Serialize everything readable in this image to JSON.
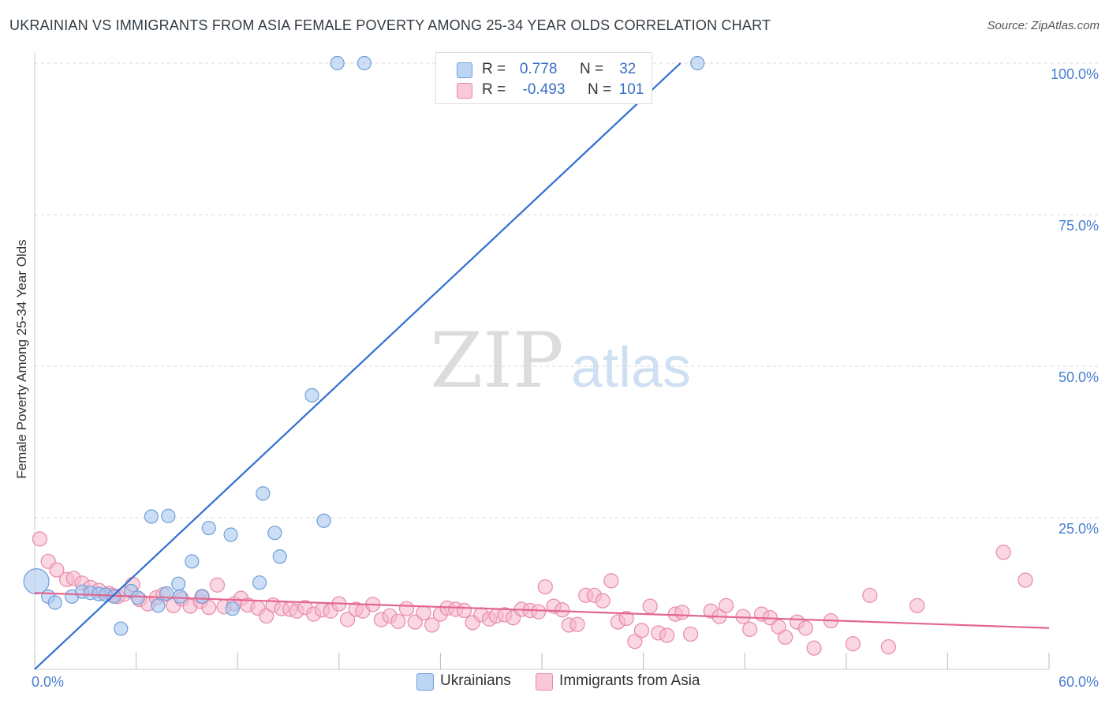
{
  "title": "UKRAINIAN VS IMMIGRANTS FROM ASIA FEMALE POVERTY AMONG 25-34 YEAR OLDS CORRELATION CHART",
  "source": "Source: ZipAtlas.com",
  "watermark": {
    "zip": "ZIP",
    "atlas": "atlas"
  },
  "legend_top": {
    "rows": [
      {
        "r_label": "R =",
        "r_value": "0.778",
        "n_label": "N =",
        "n_value": "32"
      },
      {
        "r_label": "R =",
        "r_value": "-0.493",
        "n_label": "N =",
        "n_value": "101"
      }
    ]
  },
  "legend_bottom": [
    "Ukrainians",
    "Immigrants from Asia"
  ],
  "colors": {
    "blue_fill": "#a8c8f0",
    "blue_stroke": "#6f9fd8",
    "blue_line": "#2f6fd0",
    "pink_fill": "#f6b7ca",
    "pink_stroke": "#e88aa8",
    "pink_line": "#e3668f",
    "tick_text": "#4a7fd0",
    "grid": "#d8d8d8"
  },
  "chart_data": {
    "type": "scatter",
    "title": "UKRAINIAN VS IMMIGRANTS FROM ASIA FEMALE POVERTY AMONG 25-34 YEAR OLDS CORRELATION CHART",
    "xlabel": "",
    "ylabel": "Female Poverty Among 25-34 Year Olds",
    "xlim": [
      0,
      60
    ],
    "ylim": [
      0,
      100
    ],
    "x_tick_labels": [
      "0.0%",
      "60.0%"
    ],
    "y_ticks": [
      {
        "value": 25,
        "label": "25.0%"
      },
      {
        "value": 50,
        "label": "50.0%"
      },
      {
        "value": 75,
        "label": "75.0%"
      },
      {
        "value": 100,
        "label": "100.0%"
      }
    ],
    "grid": true,
    "series": [
      {
        "name": "Ukrainians",
        "R": 0.778,
        "N": 32,
        "trend": {
          "x0": 0,
          "y0": 0,
          "x1": 38.2,
          "y1": 100
        },
        "points": [
          {
            "x": 0.1,
            "y": 14.5,
            "big": true
          },
          {
            "x": 0.8,
            "y": 12.0
          },
          {
            "x": 1.2,
            "y": 11.0
          },
          {
            "x": 2.2,
            "y": 12.0
          },
          {
            "x": 2.8,
            "y": 12.8
          },
          {
            "x": 3.3,
            "y": 12.6
          },
          {
            "x": 3.8,
            "y": 12.4
          },
          {
            "x": 4.2,
            "y": 12.3
          },
          {
            "x": 4.7,
            "y": 12.0
          },
          {
            "x": 5.1,
            "y": 6.7
          },
          {
            "x": 5.7,
            "y": 12.9
          },
          {
            "x": 6.1,
            "y": 11.8
          },
          {
            "x": 6.9,
            "y": 25.2
          },
          {
            "x": 7.3,
            "y": 10.5
          },
          {
            "x": 7.9,
            "y": 25.3
          },
          {
            "x": 8.5,
            "y": 14.1
          },
          {
            "x": 8.6,
            "y": 12.0
          },
          {
            "x": 9.3,
            "y": 17.8
          },
          {
            "x": 9.9,
            "y": 12.0
          },
          {
            "x": 10.3,
            "y": 23.3
          },
          {
            "x": 11.6,
            "y": 22.2
          },
          {
            "x": 11.7,
            "y": 10.0
          },
          {
            "x": 13.3,
            "y": 14.3
          },
          {
            "x": 13.5,
            "y": 29.0
          },
          {
            "x": 14.2,
            "y": 22.5
          },
          {
            "x": 14.5,
            "y": 18.6
          },
          {
            "x": 16.4,
            "y": 45.2
          },
          {
            "x": 17.1,
            "y": 24.5
          },
          {
            "x": 17.9,
            "y": 100.0
          },
          {
            "x": 19.5,
            "y": 100.0
          },
          {
            "x": 39.2,
            "y": 100.0
          },
          {
            "x": 7.8,
            "y": 12.5
          }
        ]
      },
      {
        "name": "Immigrants from Asia",
        "R": -0.493,
        "N": 101,
        "trend": {
          "x0": 0,
          "y0": 12.6,
          "x1": 60,
          "y1": 6.8
        },
        "points": [
          {
            "x": 0.3,
            "y": 21.5
          },
          {
            "x": 0.8,
            "y": 17.8
          },
          {
            "x": 1.3,
            "y": 16.4
          },
          {
            "x": 1.9,
            "y": 14.8
          },
          {
            "x": 2.3,
            "y": 15.0
          },
          {
            "x": 2.8,
            "y": 14.2
          },
          {
            "x": 3.3,
            "y": 13.5
          },
          {
            "x": 3.8,
            "y": 13.0
          },
          {
            "x": 4.4,
            "y": 12.5
          },
          {
            "x": 4.9,
            "y": 12.0
          },
          {
            "x": 5.3,
            "y": 12.4
          },
          {
            "x": 5.8,
            "y": 14.0
          },
          {
            "x": 6.2,
            "y": 11.5
          },
          {
            "x": 6.7,
            "y": 10.8
          },
          {
            "x": 7.2,
            "y": 11.8
          },
          {
            "x": 7.6,
            "y": 12.3
          },
          {
            "x": 8.2,
            "y": 10.5
          },
          {
            "x": 8.7,
            "y": 11.6
          },
          {
            "x": 9.2,
            "y": 10.4
          },
          {
            "x": 9.8,
            "y": 11.2
          },
          {
            "x": 10.3,
            "y": 10.2
          },
          {
            "x": 10.8,
            "y": 13.9
          },
          {
            "x": 11.2,
            "y": 10.3
          },
          {
            "x": 11.8,
            "y": 10.8
          },
          {
            "x": 12.2,
            "y": 11.7
          },
          {
            "x": 12.6,
            "y": 10.6
          },
          {
            "x": 13.2,
            "y": 10.1
          },
          {
            "x": 13.7,
            "y": 8.8
          },
          {
            "x": 14.1,
            "y": 10.6
          },
          {
            "x": 14.6,
            "y": 10.0
          },
          {
            "x": 15.1,
            "y": 9.9
          },
          {
            "x": 15.5,
            "y": 9.6
          },
          {
            "x": 16.0,
            "y": 10.2
          },
          {
            "x": 16.5,
            "y": 9.1
          },
          {
            "x": 17.0,
            "y": 9.8
          },
          {
            "x": 17.5,
            "y": 9.6
          },
          {
            "x": 18.0,
            "y": 10.8
          },
          {
            "x": 18.5,
            "y": 8.2
          },
          {
            "x": 19.0,
            "y": 9.9
          },
          {
            "x": 19.4,
            "y": 9.6
          },
          {
            "x": 20.0,
            "y": 10.7
          },
          {
            "x": 20.5,
            "y": 8.2
          },
          {
            "x": 21.0,
            "y": 8.8
          },
          {
            "x": 21.5,
            "y": 7.9
          },
          {
            "x": 22.0,
            "y": 10.0
          },
          {
            "x": 22.5,
            "y": 7.8
          },
          {
            "x": 23.0,
            "y": 9.3
          },
          {
            "x": 23.5,
            "y": 7.3
          },
          {
            "x": 24.0,
            "y": 9.1
          },
          {
            "x": 24.4,
            "y": 10.1
          },
          {
            "x": 24.9,
            "y": 9.9
          },
          {
            "x": 25.4,
            "y": 9.7
          },
          {
            "x": 25.9,
            "y": 7.7
          },
          {
            "x": 26.4,
            "y": 9.0
          },
          {
            "x": 26.9,
            "y": 8.3
          },
          {
            "x": 27.3,
            "y": 8.8
          },
          {
            "x": 27.8,
            "y": 9.0
          },
          {
            "x": 28.3,
            "y": 8.5
          },
          {
            "x": 28.8,
            "y": 9.9
          },
          {
            "x": 29.3,
            "y": 9.7
          },
          {
            "x": 29.8,
            "y": 9.5
          },
          {
            "x": 30.2,
            "y": 13.6
          },
          {
            "x": 30.7,
            "y": 10.4
          },
          {
            "x": 31.2,
            "y": 9.8
          },
          {
            "x": 31.6,
            "y": 7.3
          },
          {
            "x": 32.1,
            "y": 7.4
          },
          {
            "x": 32.6,
            "y": 12.2
          },
          {
            "x": 33.1,
            "y": 12.2
          },
          {
            "x": 33.6,
            "y": 11.3
          },
          {
            "x": 34.1,
            "y": 14.6
          },
          {
            "x": 34.5,
            "y": 7.8
          },
          {
            "x": 35.0,
            "y": 8.4
          },
          {
            "x": 35.5,
            "y": 4.6
          },
          {
            "x": 35.9,
            "y": 6.4
          },
          {
            "x": 36.4,
            "y": 10.4
          },
          {
            "x": 36.9,
            "y": 6.0
          },
          {
            "x": 37.4,
            "y": 5.6
          },
          {
            "x": 37.9,
            "y": 9.1
          },
          {
            "x": 38.3,
            "y": 9.4
          },
          {
            "x": 38.8,
            "y": 5.8
          },
          {
            "x": 40.0,
            "y": 9.6
          },
          {
            "x": 40.5,
            "y": 8.7
          },
          {
            "x": 40.9,
            "y": 10.5
          },
          {
            "x": 41.9,
            "y": 8.7
          },
          {
            "x": 42.3,
            "y": 6.6
          },
          {
            "x": 43.0,
            "y": 9.1
          },
          {
            "x": 43.5,
            "y": 8.5
          },
          {
            "x": 44.0,
            "y": 7.0
          },
          {
            "x": 44.4,
            "y": 5.3
          },
          {
            "x": 45.1,
            "y": 7.8
          },
          {
            "x": 45.6,
            "y": 6.8
          },
          {
            "x": 46.1,
            "y": 3.5
          },
          {
            "x": 47.1,
            "y": 8.0
          },
          {
            "x": 48.4,
            "y": 4.2
          },
          {
            "x": 49.4,
            "y": 12.2
          },
          {
            "x": 50.5,
            "y": 3.7
          },
          {
            "x": 52.2,
            "y": 10.5
          },
          {
            "x": 57.3,
            "y": 19.3
          },
          {
            "x": 58.6,
            "y": 14.7
          },
          {
            "x": 9.9,
            "y": 12.0
          },
          {
            "x": 4.6,
            "y": 12.2
          }
        ]
      }
    ]
  }
}
